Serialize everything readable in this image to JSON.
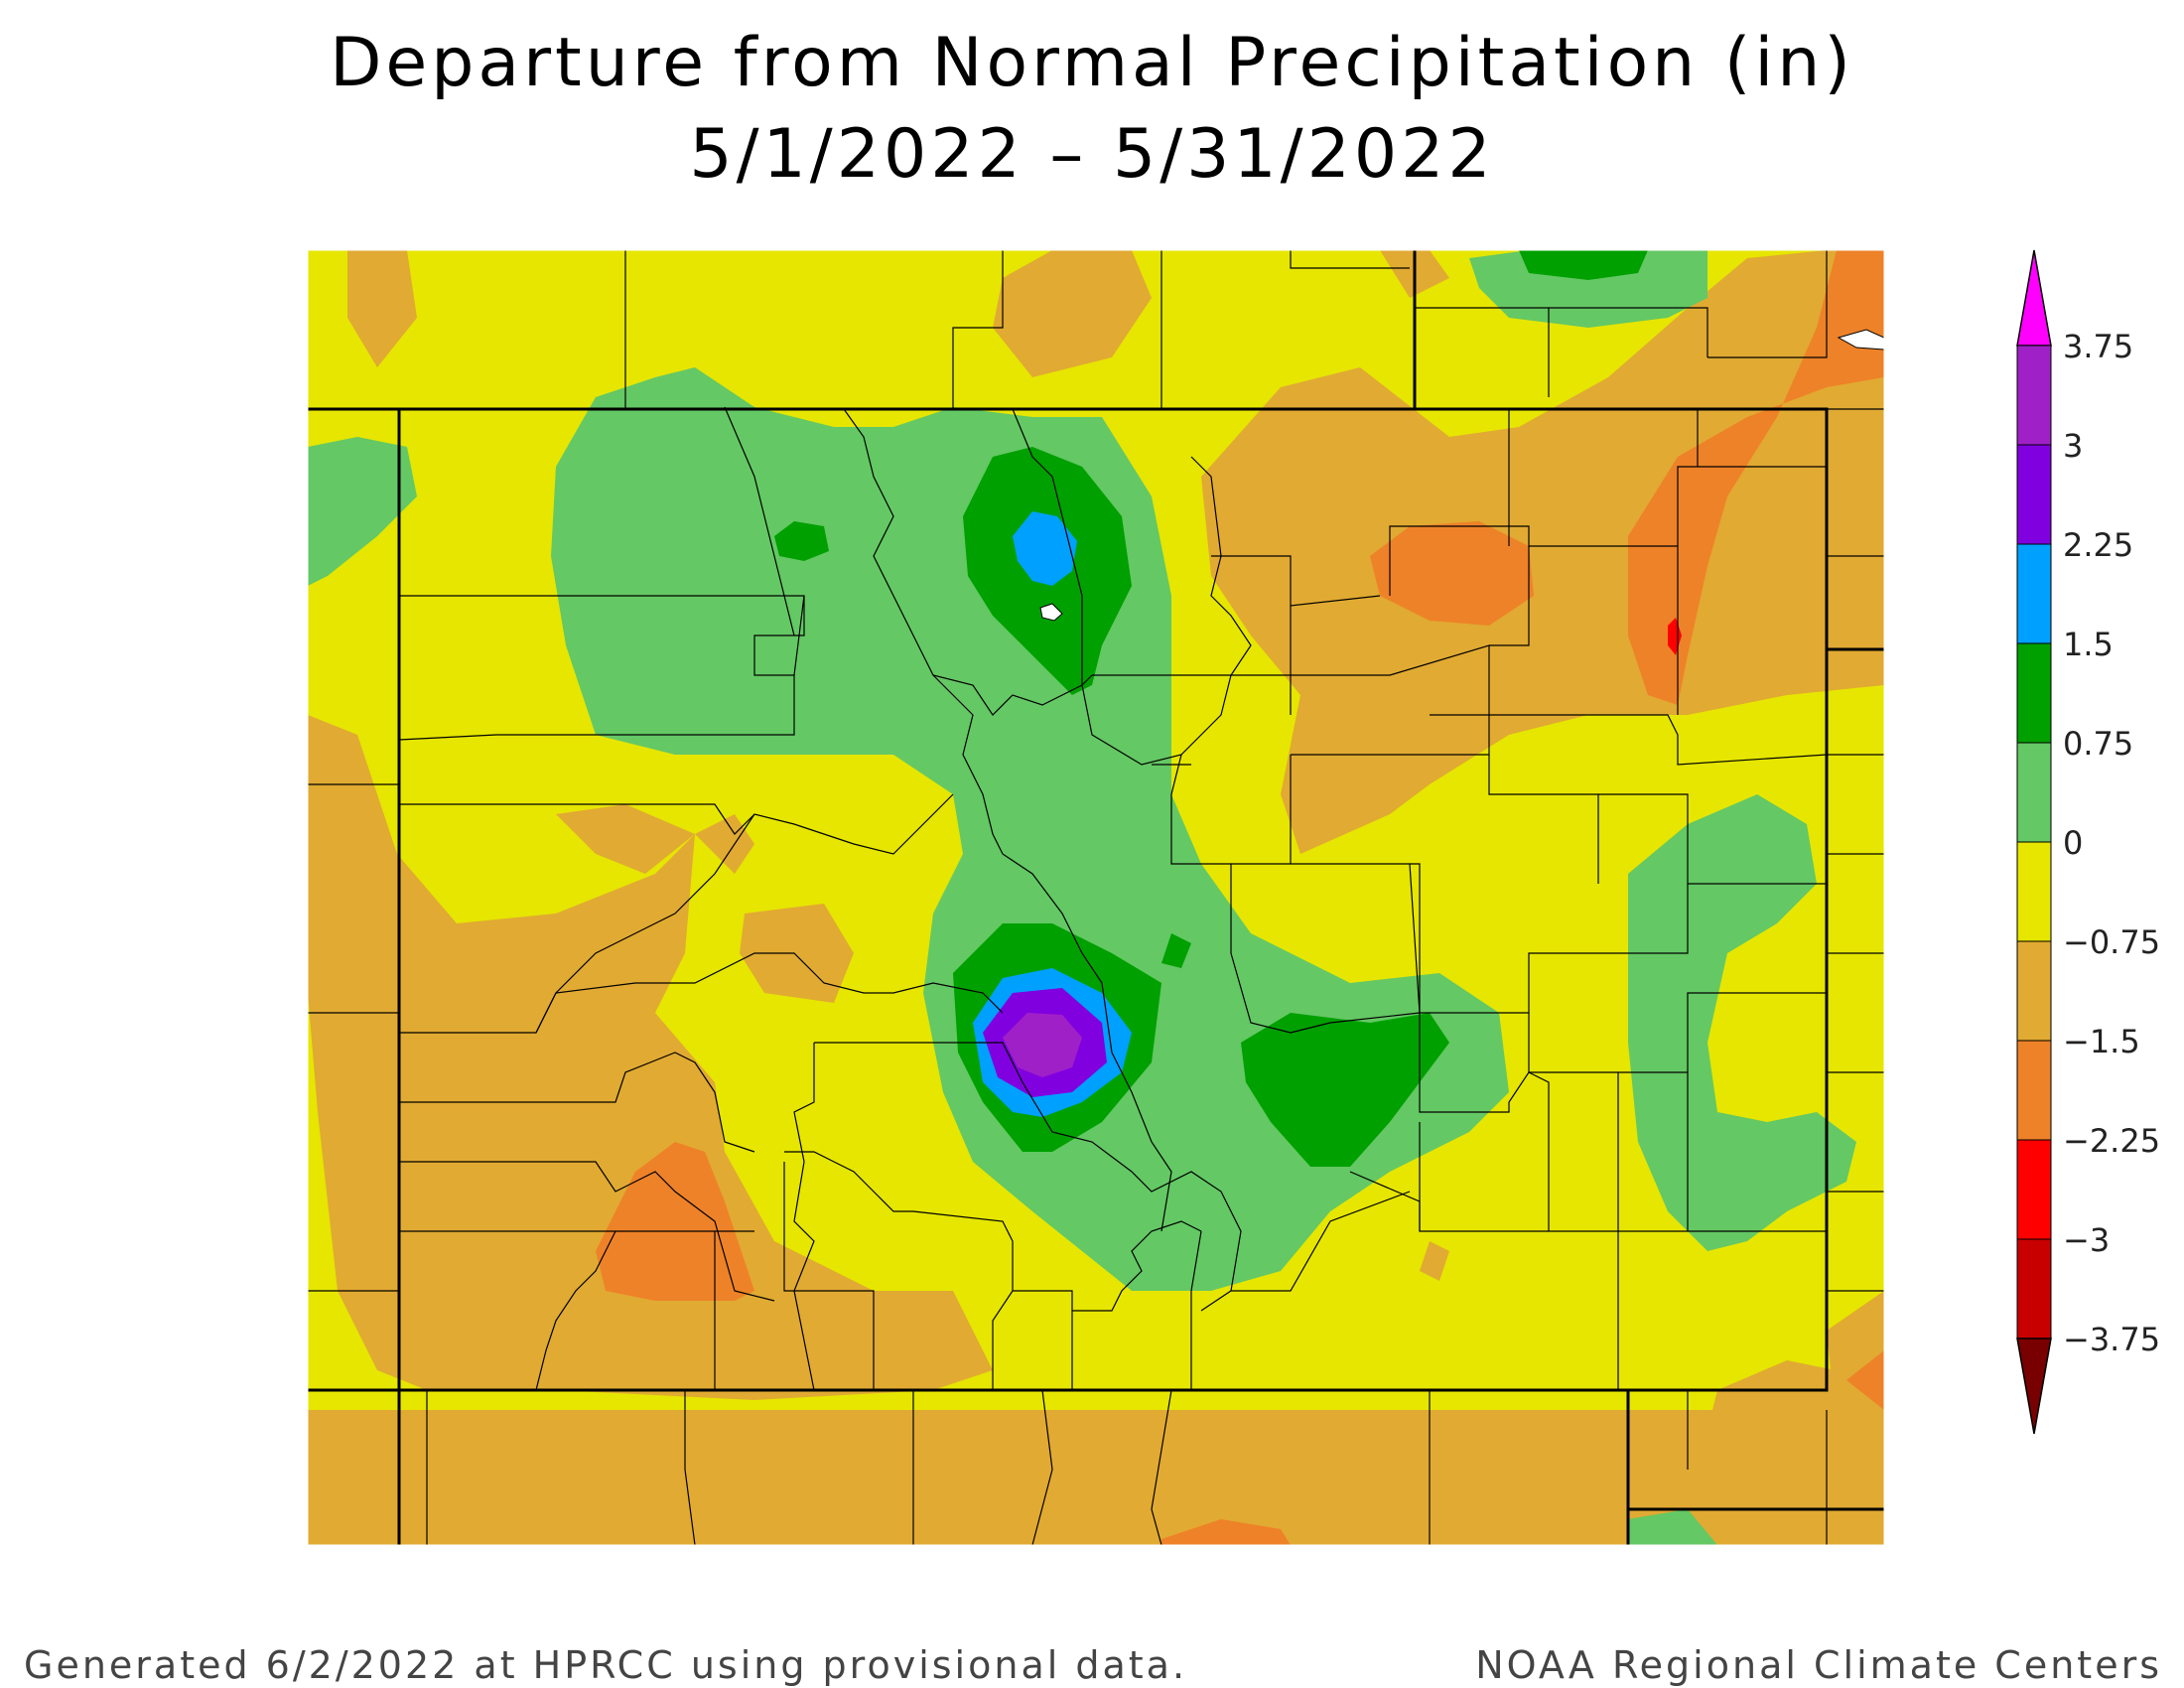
{
  "title": {
    "line1": "Departure from Normal Precipitation (in)",
    "line2": "5/1/2022 – 5/31/2022"
  },
  "map": {
    "region": "Colorado",
    "variable": "precipitation departure from normal",
    "units": "in"
  },
  "colorbar": {
    "labels": [
      "3.75",
      "3",
      "2.25",
      "1.5",
      "0.75",
      "0",
      "−0.75",
      "−1.5",
      "−2.25",
      "−3",
      "−3.75"
    ],
    "colors": {
      "above_3_75": "#ff00ff",
      "from_3_to_3_75": "#a020c8",
      "from_2_25_to_3": "#8000e0",
      "from_1_5_to_2_25": "#00a0ff",
      "from_0_75_to_1_5": "#00a000",
      "from_0_to_0_75": "#64c864",
      "from_neg_0_75_to_0": "#e6e600",
      "from_neg_1_5_to_neg_0_75": "#e1aa32",
      "from_neg_2_25_to_neg_1_5": "#ee8228",
      "from_neg_3_to_neg_2_25": "#ff0000",
      "from_neg_3_75_to_neg_3": "#c80000",
      "below_neg_3_75": "#780000"
    }
  },
  "footer": {
    "left": "Generated 6/2/2022 at HPRCC using provisional data.",
    "right": "NOAA Regional Climate Centers"
  }
}
